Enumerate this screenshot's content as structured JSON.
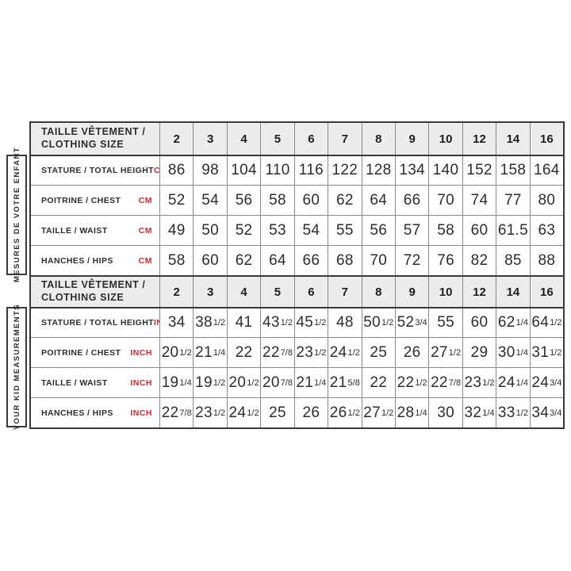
{
  "colors": {
    "header_bg": "#ececec",
    "border_dark": "#3a3a3a",
    "border_light": "#8a8a8a",
    "unit_red": "#ce2b31",
    "text": "#2d2d2d"
  },
  "chart_data": {
    "type": "table",
    "size_header": {
      "label_line1": "TAILLE VÊTEMENT /",
      "label_line2": "CLOTHING SIZE",
      "sizes": [
        "2",
        "3",
        "4",
        "5",
        "6",
        "7",
        "8",
        "9",
        "10",
        "12",
        "14",
        "16"
      ]
    },
    "sections": [
      {
        "side_label": "MESURES DE VOTRE ENFANT",
        "unit": "CM",
        "rows": [
          {
            "label": "STATURE / TOTAL HEIGHT",
            "values": [
              "86",
              "98",
              "104",
              "110",
              "116",
              "122",
              "128",
              "134",
              "140",
              "152",
              "158",
              "164"
            ]
          },
          {
            "label": "POITRINE / CHEST",
            "values": [
              "52",
              "54",
              "56",
              "58",
              "60",
              "62",
              "64",
              "66",
              "70",
              "74",
              "77",
              "80"
            ]
          },
          {
            "label": "TAILLE / WAIST",
            "values": [
              "49",
              "50",
              "52",
              "53",
              "54",
              "55",
              "56",
              "57",
              "58",
              "60",
              "61.5",
              "63"
            ]
          },
          {
            "label": "HANCHES / HIPS",
            "values": [
              "58",
              "60",
              "62",
              "64",
              "66",
              "68",
              "70",
              "72",
              "76",
              "82",
              "85",
              "88"
            ]
          }
        ]
      },
      {
        "side_label": "YOUR KID MEASUREMENTS",
        "unit": "INCH",
        "rows": [
          {
            "label": "STATURE / TOTAL HEIGHT",
            "values": [
              "34",
              "38 1/2",
              "41",
              "43 1/2",
              "45 1/2",
              "48",
              "50 1/2",
              "52 3/4",
              "55",
              "60",
              "62 1/4",
              "64 1/2"
            ]
          },
          {
            "label": "POITRINE / CHEST",
            "values": [
              "20 1/2",
              "21 1/4",
              "22",
              "22 7/8",
              "23 1/2",
              "24 1/2",
              "25",
              "26",
              "27 1/2",
              "29",
              "30 1/4",
              "31 1/2"
            ]
          },
          {
            "label": "TAILLE / WAIST",
            "values": [
              "19 1/4",
              "19 1/2",
              "20 1/2",
              "20 7/8",
              "21 1/4",
              "21 5/8",
              "22",
              "22 1/2",
              "22 7/8",
              "23 1/2",
              "24 1/4",
              "24 3/4"
            ]
          },
          {
            "label": "HANCHES / HIPS",
            "values": [
              "22 7/8",
              "23 1/2",
              "24 1/2",
              "25",
              "26",
              "26 1/2",
              "27 1/2",
              "28 1/4",
              "30",
              "32 1/4",
              "33 1/2",
              "34 3/4"
            ]
          }
        ]
      }
    ]
  }
}
